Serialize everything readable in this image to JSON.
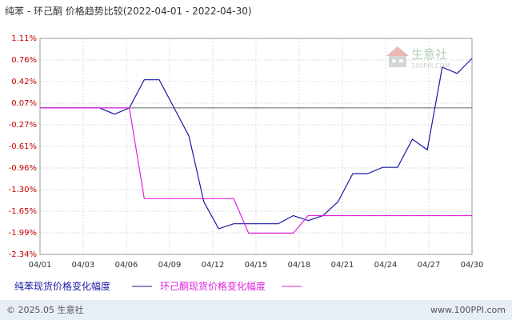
{
  "header": {
    "title": "纯苯 - 环己酮 价格趋势比较(2022-04-01 - 2022-04-30)"
  },
  "watermark": {
    "name": "生意社",
    "site": "100PPI.COM"
  },
  "footer": {
    "left": "© 2025.05 生意社",
    "right": "www.100PPI.com"
  },
  "colors": {
    "series1": "#1a1aa6",
    "series2": "#dd22dd",
    "ytick": "#c00000",
    "grid": "#dcdcdc",
    "footer_bg": "#e8eef5",
    "plot_border": "#999999"
  },
  "chart_data": {
    "type": "line",
    "title": "纯苯 - 环己酮 价格趋势比较(2022-04-01 - 2022-04-30)",
    "xlabel": "",
    "ylabel": "",
    "ylim": [
      -2.34,
      1.11
    ],
    "grid": true,
    "legend": "bottom",
    "y_ticks": [
      "1.11%",
      "0.76%",
      "0.42%",
      "0.07%",
      "-0.27%",
      "-0.61%",
      "-0.96%",
      "-1.30%",
      "-1.65%",
      "-1.99%",
      "-2.34%"
    ],
    "x_ticks": [
      "04/01",
      "04/03",
      "04/06",
      "04/09",
      "04/12",
      "04/15",
      "04/18",
      "04/21",
      "04/24",
      "04/27",
      "04/30"
    ],
    "series": [
      {
        "name": "纯苯现货价格变化幅度",
        "points": [
          [
            1,
            0.0
          ],
          [
            5,
            0.0
          ],
          [
            6,
            -0.1
          ],
          [
            7,
            0.0
          ],
          [
            8,
            0.45
          ],
          [
            9,
            0.45
          ],
          [
            10,
            0.0
          ],
          [
            11,
            -0.45
          ],
          [
            12,
            -1.5
          ],
          [
            13,
            -1.93
          ],
          [
            14,
            -1.85
          ],
          [
            15,
            -1.85
          ],
          [
            16,
            -1.85
          ],
          [
            17,
            -1.85
          ],
          [
            18,
            -1.72
          ],
          [
            19,
            -1.8
          ],
          [
            20,
            -1.72
          ],
          [
            21,
            -1.5
          ],
          [
            22,
            -1.05
          ],
          [
            23,
            -1.05
          ],
          [
            24,
            -0.95
          ],
          [
            25,
            -0.95
          ],
          [
            26,
            -0.5
          ],
          [
            27,
            -0.67
          ],
          [
            28,
            0.65
          ],
          [
            29,
            0.55
          ],
          [
            30,
            0.79
          ]
        ]
      },
      {
        "name": "环己酮现货价格变化幅度",
        "points": [
          [
            1,
            0.0
          ],
          [
            7,
            0.0
          ],
          [
            8,
            -1.45
          ],
          [
            9,
            -1.45
          ],
          [
            10,
            -1.45
          ],
          [
            11,
            -1.45
          ],
          [
            12,
            -1.45
          ],
          [
            13,
            -1.45
          ],
          [
            14,
            -1.45
          ],
          [
            15,
            -2.0
          ],
          [
            16,
            -2.0
          ],
          [
            17,
            -2.0
          ],
          [
            18,
            -2.0
          ],
          [
            19,
            -1.72
          ],
          [
            20,
            -1.72
          ],
          [
            21,
            -1.72
          ],
          [
            22,
            -1.72
          ],
          [
            23,
            -1.72
          ],
          [
            24,
            -1.72
          ],
          [
            25,
            -1.72
          ],
          [
            26,
            -1.72
          ],
          [
            27,
            -1.72
          ],
          [
            28,
            -1.72
          ],
          [
            29,
            -1.72
          ],
          [
            30,
            -1.72
          ]
        ]
      }
    ]
  }
}
